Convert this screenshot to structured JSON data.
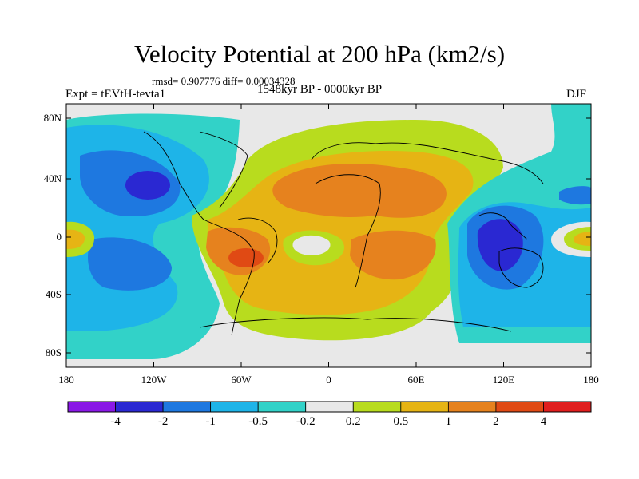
{
  "title": "Velocity Potential at 200 hPa (km2/s)",
  "stats": "rmsd= 0.907776 diff= 0.00034328",
  "experiment": "Expt = tEVtH-tevta1",
  "period": "1548kyr BP - 0000kyr BP",
  "season": "DJF",
  "lat_labels": [
    "80N",
    "40N",
    "0",
    "40S",
    "80S"
  ],
  "lon_labels": [
    "180",
    "120W",
    "60W",
    "0",
    "60E",
    "120E",
    "180"
  ],
  "colorbar": {
    "labels": [
      "-4",
      "-2",
      "-1",
      "-0.5",
      "-0.2",
      "0.2",
      "0.5",
      "1",
      "2",
      "4"
    ],
    "colors": [
      "#8a18e6",
      "#2a28d2",
      "#1e78e0",
      "#1eb4e8",
      "#32d2c8",
      "#e8e8e8",
      "#b8dc1e",
      "#e6b414",
      "#e6821e",
      "#e04a14",
      "#e01e1e"
    ]
  }
}
